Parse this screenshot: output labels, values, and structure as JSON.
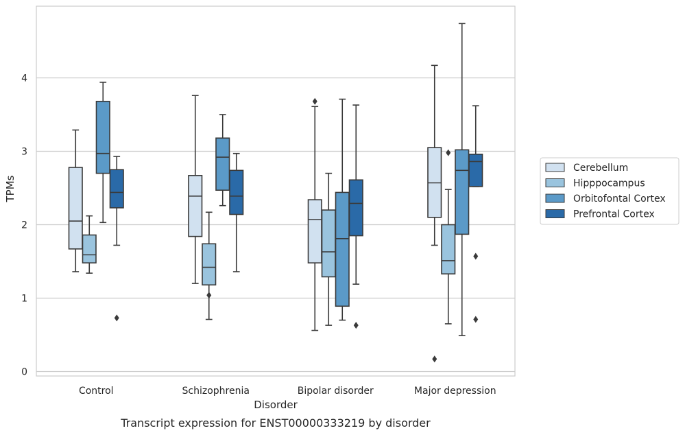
{
  "chart_data": {
    "type": "box",
    "title": "",
    "xlabel": "Disorder",
    "ylabel": "TPMs",
    "caption": "Transcript expression for ENST00000333219 by disorder",
    "categories": [
      "Control",
      "Schizophrenia",
      "Bipolar disorder",
      "Major depression"
    ],
    "ylim": [
      -0.05,
      4.9
    ],
    "yticks": [
      "0",
      "1",
      "2",
      "3",
      "4"
    ],
    "grid": "horizontal",
    "legend_position": "right",
    "series": [
      {
        "name": "Cerebellum",
        "color": "#d1e1f0",
        "boxes": [
          {
            "whislo": 1.36,
            "q1": 1.67,
            "med": 2.05,
            "q3": 2.78,
            "whishi": 3.29,
            "fliers": []
          },
          {
            "whislo": 1.2,
            "q1": 1.84,
            "med": 2.39,
            "q3": 2.67,
            "whishi": 3.76,
            "fliers": []
          },
          {
            "whislo": 0.56,
            "q1": 1.48,
            "med": 2.07,
            "q3": 2.34,
            "whishi": 3.61,
            "fliers": [
              3.68
            ]
          },
          {
            "whislo": 1.72,
            "q1": 2.1,
            "med": 2.57,
            "q3": 3.05,
            "whishi": 4.17,
            "fliers": [
              0.17
            ]
          }
        ]
      },
      {
        "name": "Hipppocampus",
        "color": "#9ac4de",
        "boxes": [
          {
            "whislo": 1.34,
            "q1": 1.48,
            "med": 1.59,
            "q3": 1.86,
            "whishi": 2.12,
            "fliers": []
          },
          {
            "whislo": 0.71,
            "q1": 1.18,
            "med": 1.42,
            "q3": 1.74,
            "whishi": 2.17,
            "fliers": [
              1.04
            ]
          },
          {
            "whislo": 0.63,
            "q1": 1.29,
            "med": 1.63,
            "q3": 2.2,
            "whishi": 2.7,
            "fliers": []
          },
          {
            "whislo": 0.65,
            "q1": 1.33,
            "med": 1.51,
            "q3": 2.0,
            "whishi": 2.48,
            "fliers": [
              2.98
            ]
          }
        ]
      },
      {
        "name": "Orbitofontal Cortex",
        "color": "#5b9ac8",
        "boxes": [
          {
            "whislo": 2.03,
            "q1": 2.7,
            "med": 2.97,
            "q3": 3.68,
            "whishi": 3.94,
            "fliers": []
          },
          {
            "whislo": 2.26,
            "q1": 2.47,
            "med": 2.92,
            "q3": 3.18,
            "whishi": 3.5,
            "fliers": []
          },
          {
            "whislo": 0.7,
            "q1": 0.89,
            "med": 1.81,
            "q3": 2.44,
            "whishi": 3.71,
            "fliers": []
          },
          {
            "whislo": 0.49,
            "q1": 1.87,
            "med": 2.74,
            "q3": 3.02,
            "whishi": 4.74,
            "fliers": []
          }
        ]
      },
      {
        "name": "Prefrontal Cortex",
        "color": "#2a6aa8",
        "boxes": [
          {
            "whislo": 1.72,
            "q1": 2.23,
            "med": 2.44,
            "q3": 2.75,
            "whishi": 2.93,
            "fliers": [
              0.73
            ]
          },
          {
            "whislo": 1.36,
            "q1": 2.14,
            "med": 2.39,
            "q3": 2.74,
            "whishi": 2.97,
            "fliers": []
          },
          {
            "whislo": 1.19,
            "q1": 1.85,
            "med": 2.29,
            "q3": 2.61,
            "whishi": 3.63,
            "fliers": [
              0.63
            ]
          },
          {
            "whislo": 2.52,
            "q1": 2.52,
            "med": 2.86,
            "q3": 2.96,
            "whishi": 3.62,
            "fliers": [
              1.57,
              0.71
            ]
          }
        ]
      }
    ]
  }
}
